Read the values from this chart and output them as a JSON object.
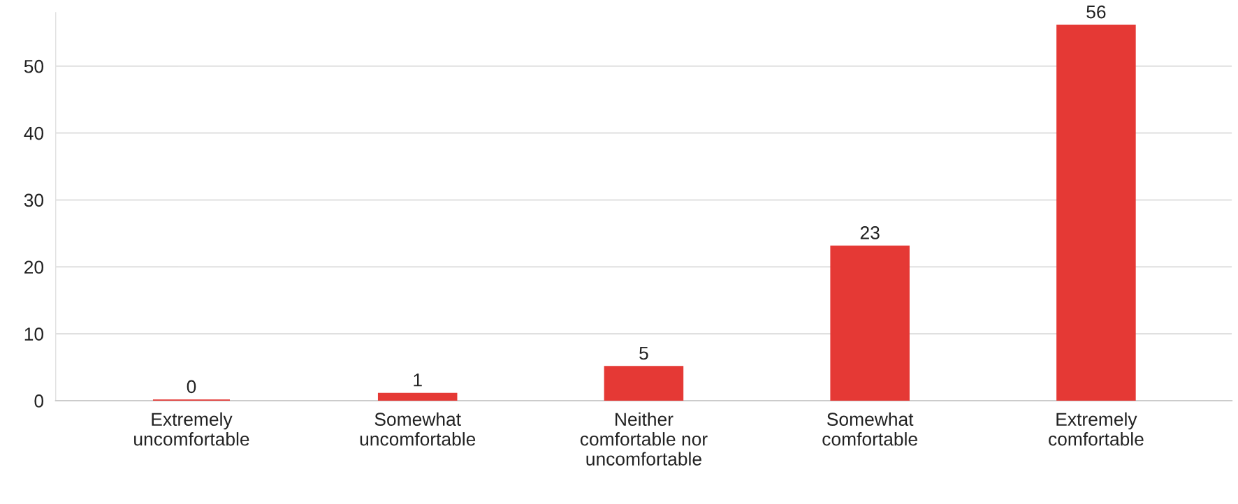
{
  "chart_data": {
    "type": "bar",
    "categories": [
      "Extremely\nuncomfortable",
      "Somewhat\nuncomfortable",
      "Neither\ncomfortable nor\nuncomfortable",
      "Somewhat\ncomfortable",
      "Extremely\ncomfortable"
    ],
    "values": [
      0,
      1,
      5,
      23,
      56
    ],
    "color": "#e53935",
    "ylim": [
      0,
      58
    ],
    "yticks": [
      0,
      10,
      20,
      30,
      40,
      50
    ],
    "grid": "y",
    "data_labels": true
  }
}
